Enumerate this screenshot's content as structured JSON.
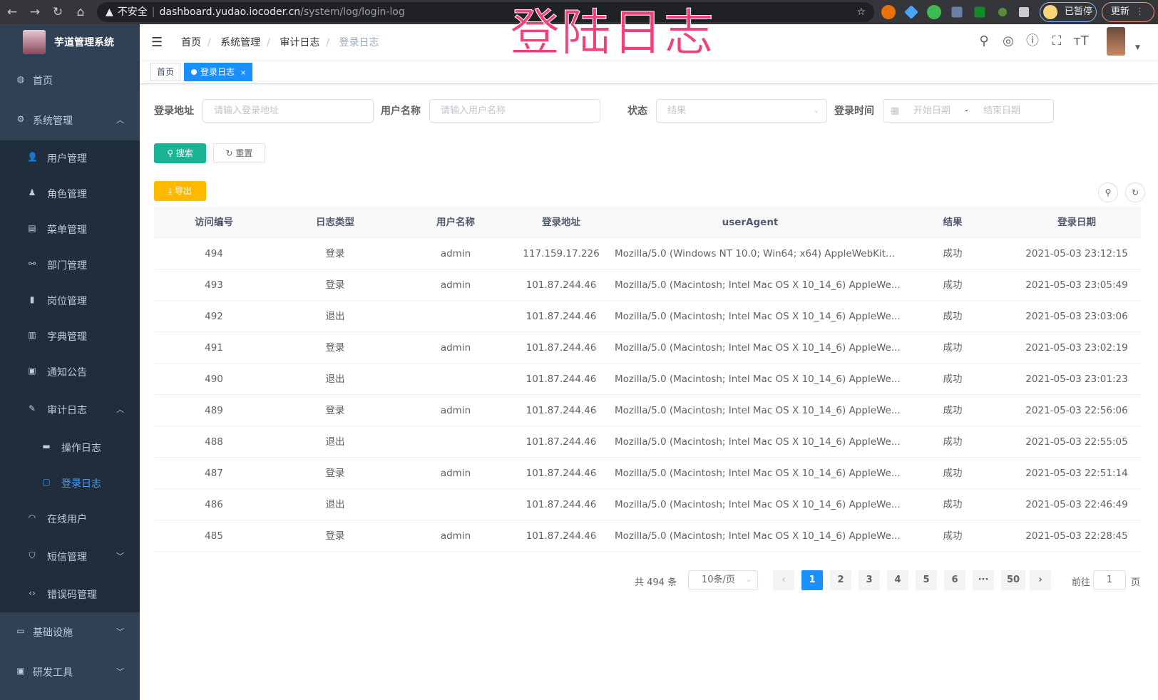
{
  "browser": {
    "back_icon": "arrow-left",
    "forward_icon": "arrow-right",
    "reload_icon": "reload",
    "home_icon": "home",
    "security_label": "不安全",
    "url_host": "dashboard.yudao.iocoder.cn",
    "url_path": "/system/log/login-log",
    "profile_label": "已暂停",
    "update_label": "更新"
  },
  "overlay_title": "登陆日志",
  "sidebar": {
    "app_title": "芋道管理系统",
    "active_color": "#409eff",
    "items": [
      {
        "label": "首页",
        "icon": "dashboard",
        "level": 0
      },
      {
        "label": "系统管理",
        "icon": "gear",
        "level": 0,
        "arrow": "up"
      },
      {
        "label": "用户管理",
        "icon": "user",
        "level": 1
      },
      {
        "label": "角色管理",
        "icon": "peoples",
        "level": 1
      },
      {
        "label": "菜单管理",
        "icon": "tree-table",
        "level": 1
      },
      {
        "label": "部门管理",
        "icon": "tree",
        "level": 1
      },
      {
        "label": "岗位管理",
        "icon": "post",
        "level": 1
      },
      {
        "label": "字典管理",
        "icon": "dict",
        "level": 1
      },
      {
        "label": "通知公告",
        "icon": "message",
        "level": 1
      },
      {
        "label": "审计日志",
        "icon": "log",
        "level": 1,
        "arrow": "up"
      },
      {
        "label": "操作日志",
        "icon": "form",
        "level": 2
      },
      {
        "label": "登录日志",
        "icon": "logininfor",
        "level": 2,
        "active": true
      },
      {
        "label": "在线用户",
        "icon": "online",
        "level": 1
      },
      {
        "label": "短信管理",
        "icon": "shield",
        "level": 1,
        "arrow": "down"
      },
      {
        "label": "错误码管理",
        "icon": "code",
        "level": 1
      },
      {
        "label": "基础设施",
        "icon": "monitor",
        "level": 0,
        "arrow": "down"
      },
      {
        "label": "研发工具",
        "icon": "tool",
        "level": 0,
        "arrow": "down"
      }
    ]
  },
  "navbar": {
    "breadcrumbs": [
      "首页",
      "系统管理",
      "审计日志",
      "登录日志"
    ]
  },
  "tags": [
    {
      "label": "首页"
    },
    {
      "label": "登录日志",
      "active": true
    }
  ],
  "filters": {
    "ipaddr": {
      "label": "登录地址",
      "placeholder": "请输入登录地址"
    },
    "username": {
      "label": "用户名称",
      "placeholder": "请输入用户名称"
    },
    "status": {
      "label": "状态",
      "placeholder": "结果"
    },
    "time": {
      "label": "登录时间",
      "start_placeholder": "开始日期",
      "separator": "-",
      "end_placeholder": "结束日期"
    }
  },
  "buttons": {
    "search": "搜索",
    "reset": "重置",
    "export": "导出"
  },
  "table": {
    "columns": [
      "访问编号",
      "日志类型",
      "用户名称",
      "登录地址",
      "userAgent",
      "结果",
      "登录日期"
    ],
    "rows": [
      [
        "494",
        "登录",
        "admin",
        "117.159.17.226",
        "Mozilla/5.0 (Windows NT 10.0; Win64; x64) AppleWebKit...",
        "成功",
        "2021-05-03 23:12:15"
      ],
      [
        "493",
        "登录",
        "admin",
        "101.87.244.46",
        "Mozilla/5.0 (Macintosh; Intel Mac OS X 10_14_6) AppleWe...",
        "成功",
        "2021-05-03 23:05:49"
      ],
      [
        "492",
        "退出",
        "",
        "101.87.244.46",
        "Mozilla/5.0 (Macintosh; Intel Mac OS X 10_14_6) AppleWe...",
        "成功",
        "2021-05-03 23:03:06"
      ],
      [
        "491",
        "登录",
        "admin",
        "101.87.244.46",
        "Mozilla/5.0 (Macintosh; Intel Mac OS X 10_14_6) AppleWe...",
        "成功",
        "2021-05-03 23:02:19"
      ],
      [
        "490",
        "退出",
        "",
        "101.87.244.46",
        "Mozilla/5.0 (Macintosh; Intel Mac OS X 10_14_6) AppleWe...",
        "成功",
        "2021-05-03 23:01:23"
      ],
      [
        "489",
        "登录",
        "admin",
        "101.87.244.46",
        "Mozilla/5.0 (Macintosh; Intel Mac OS X 10_14_6) AppleWe...",
        "成功",
        "2021-05-03 22:56:06"
      ],
      [
        "488",
        "退出",
        "",
        "101.87.244.46",
        "Mozilla/5.0 (Macintosh; Intel Mac OS X 10_14_6) AppleWe...",
        "成功",
        "2021-05-03 22:55:05"
      ],
      [
        "487",
        "登录",
        "admin",
        "101.87.244.46",
        "Mozilla/5.0 (Macintosh; Intel Mac OS X 10_14_6) AppleWe...",
        "成功",
        "2021-05-03 22:51:14"
      ],
      [
        "486",
        "退出",
        "",
        "101.87.244.46",
        "Mozilla/5.0 (Macintosh; Intel Mac OS X 10_14_6) AppleWe...",
        "成功",
        "2021-05-03 22:46:49"
      ],
      [
        "485",
        "登录",
        "admin",
        "101.87.244.46",
        "Mozilla/5.0 (Macintosh; Intel Mac OS X 10_14_6) AppleWe...",
        "成功",
        "2021-05-03 22:28:45"
      ]
    ]
  },
  "pagination": {
    "total_label": "共 494 条",
    "page_size": "10条/页",
    "pages": [
      "1",
      "2",
      "3",
      "4",
      "5",
      "6",
      "···",
      "50"
    ],
    "current": "1",
    "goto_label": "前往",
    "goto_value": "1",
    "page_suffix": "页"
  }
}
